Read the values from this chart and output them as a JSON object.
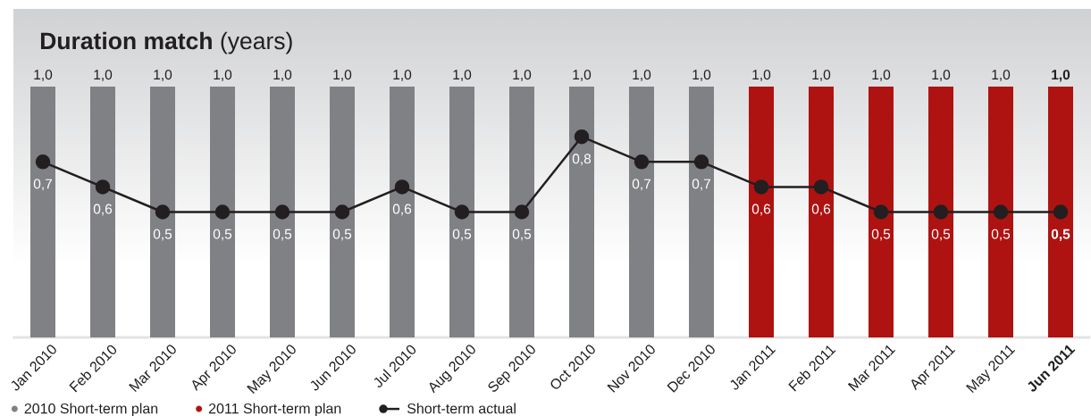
{
  "chart_data": {
    "type": "bar",
    "title": "**Duration match** (years)",
    "categories": [
      "Jan 2010",
      "Feb 2010",
      "Mar 2010",
      "Apr 2010",
      "May 2010",
      "Jun 2010",
      "Jul 2010",
      "Aug 2010",
      "Sep 2010",
      "Oct 2010",
      "Nov 2010",
      "Dec 2010",
      "Jan 2011",
      "Feb 2011",
      "Mar 2011",
      "Apr 2011",
      "May 2011",
      "**Jun 2011**"
    ],
    "series": [
      {
        "name": "2010 Short-term plan",
        "color": "#808184",
        "values": [
          1.0,
          1.0,
          1.0,
          1.0,
          1.0,
          1.0,
          1.0,
          1.0,
          1.0,
          1.0,
          1.0,
          1.0,
          null,
          null,
          null,
          null,
          null,
          null
        ],
        "value_labels": [
          "1,0",
          "1,0",
          "1,0",
          "1,0",
          "1,0",
          "1,0",
          "1,0",
          "1,0",
          "1,0",
          "1,0",
          "1,0",
          "1,0",
          null,
          null,
          null,
          null,
          null,
          null
        ]
      },
      {
        "name": "2011 Short-term plan",
        "color": "#ae1311",
        "values": [
          null,
          null,
          null,
          null,
          null,
          null,
          null,
          null,
          null,
          null,
          null,
          null,
          1.0,
          1.0,
          1.0,
          1.0,
          1.0,
          1.0
        ],
        "value_labels": [
          null,
          null,
          null,
          null,
          null,
          null,
          null,
          null,
          null,
          null,
          null,
          null,
          "1,0",
          "1,0",
          "1,0",
          "1,0",
          "1,0",
          "**1,0**"
        ]
      },
      {
        "name": "Short-term actual",
        "type": "line",
        "color": "#231f20",
        "marker": "circle",
        "line_style": "solid",
        "values": [
          0.7,
          0.6,
          0.5,
          0.5,
          0.5,
          0.5,
          0.6,
          0.5,
          0.5,
          0.8,
          0.7,
          0.7,
          0.6,
          0.6,
          0.5,
          0.5,
          0.5,
          0.5
        ],
        "value_labels": [
          "0,7",
          "0,6",
          "0,5",
          "0,5",
          "0,5",
          "0,5",
          "0,6",
          "0,5",
          "0,5",
          "0,8",
          "0,7",
          "0,7",
          "0,6",
          "0,6",
          "0,5",
          "0,5",
          "0,5",
          "**0,5**"
        ]
      }
    ],
    "ylim": [
      0,
      1.0
    ],
    "tick_labels": "x",
    "legend": "bottom left"
  }
}
